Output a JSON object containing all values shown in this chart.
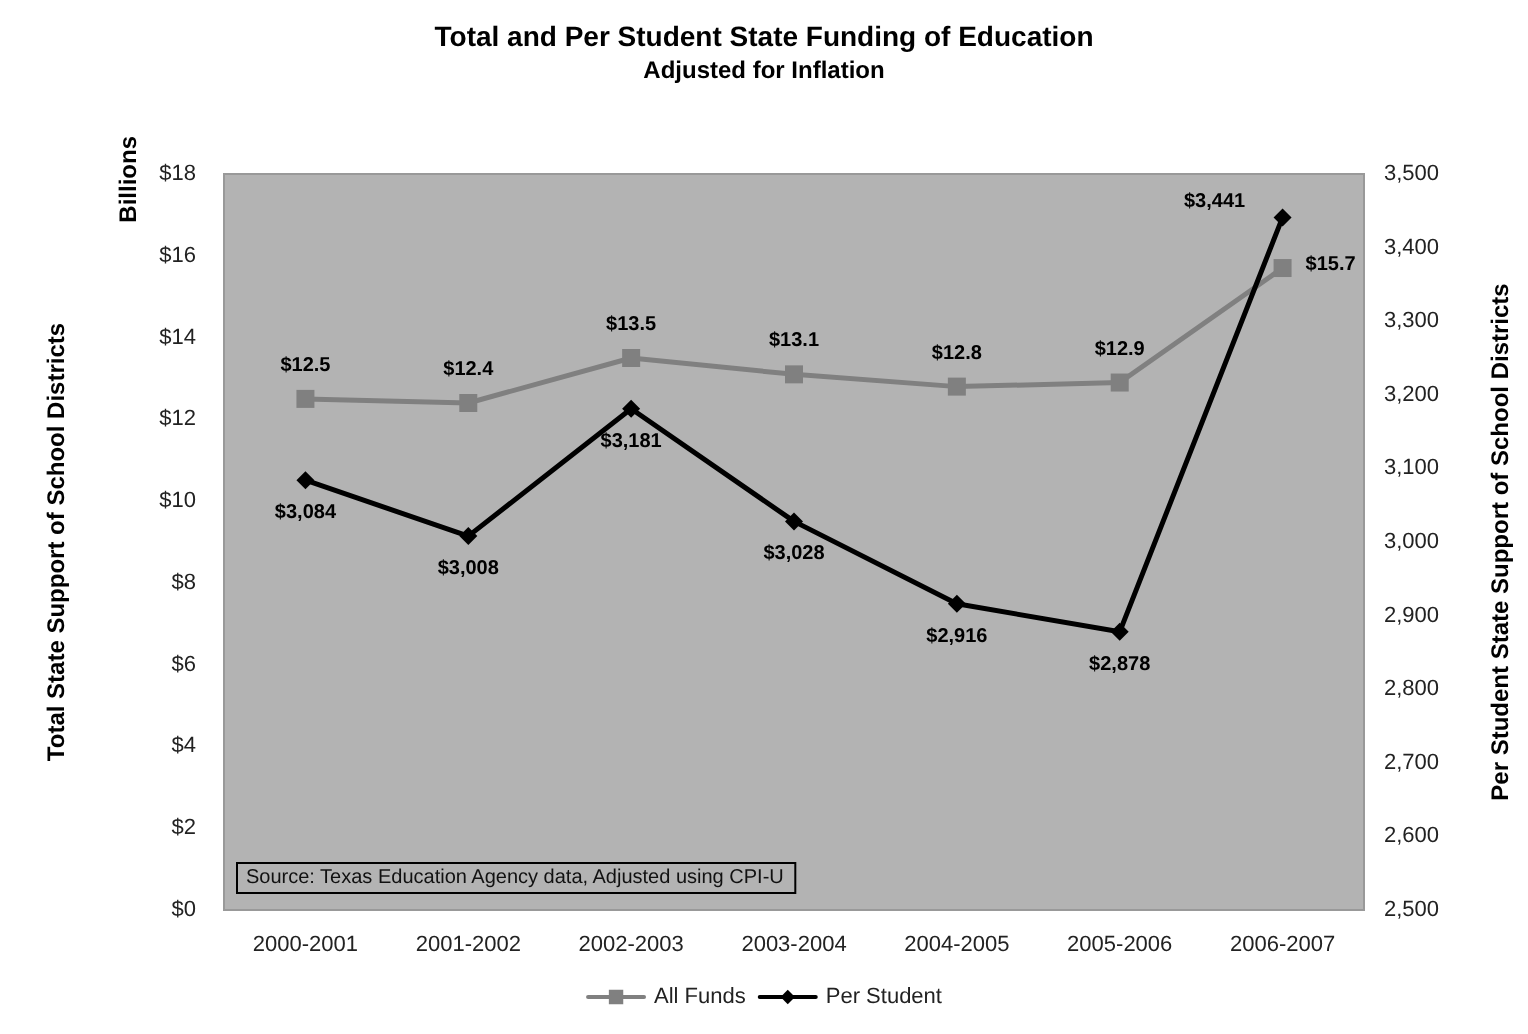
{
  "chart_data": {
    "type": "line",
    "title": "Total and Per Student State Funding of Education",
    "subtitle": "Adjusted for Inflation",
    "ylabel": "Total State Support of School Districts",
    "y2label": "Per Student State Support of School Districts",
    "annotations": [
      "Source: Texas Education Agency data, Adjusted using CPI-U",
      "Billions"
    ],
    "categories": [
      "2000-2001",
      "2001-2002",
      "2002-2003",
      "2003-2004",
      "2004-2005",
      "2005-2006",
      "2006-2007"
    ],
    "series": [
      {
        "name": "All Funds",
        "color": "#808080",
        "marker": "square",
        "values": [
          12.5,
          12.4,
          13.5,
          13.1,
          12.8,
          12.9,
          15.7
        ],
        "value_labels": [
          "$12.5",
          "$12.4",
          "$13.5",
          "$13.1",
          "$12.8",
          "$12.9",
          "$15.7"
        ]
      },
      {
        "name": "Per Student",
        "color": "#000000",
        "marker": "diamond",
        "axis": "y2",
        "values": [
          3084,
          3008,
          3181,
          3028,
          2916,
          2878,
          3441
        ],
        "value_labels": [
          "$3,084",
          "$3,008",
          "$3,181",
          "$3,028",
          "$2,916",
          "$2,878",
          "$3,441"
        ]
      }
    ],
    "ylim": [
      0,
      18
    ],
    "yticks": [
      {
        "value": 0,
        "label": "$0"
      },
      {
        "value": 2,
        "label": "$2"
      },
      {
        "value": 4,
        "label": "$4"
      },
      {
        "value": 6,
        "label": "$6"
      },
      {
        "value": 8,
        "label": "$8"
      },
      {
        "value": 10,
        "label": "$10"
      },
      {
        "value": 12,
        "label": "$12"
      },
      {
        "value": 14,
        "label": "$14"
      },
      {
        "value": 16,
        "label": "$16"
      },
      {
        "value": 18,
        "label": "$18"
      }
    ],
    "y2lim": [
      2500,
      3500
    ],
    "y2ticks": [
      {
        "value": 2500,
        "label": "2,500"
      },
      {
        "value": 2600,
        "label": "2,600"
      },
      {
        "value": 2700,
        "label": "2,700"
      },
      {
        "value": 2800,
        "label": "2,800"
      },
      {
        "value": 2900,
        "label": "2,900"
      },
      {
        "value": 3000,
        "label": "3,000"
      },
      {
        "value": 3100,
        "label": "3,100"
      },
      {
        "value": 3200,
        "label": "3,200"
      },
      {
        "value": 3300,
        "label": "3,300"
      },
      {
        "value": 3400,
        "label": "3,400"
      },
      {
        "value": 3500,
        "label": "3,500"
      }
    ],
    "grid": false,
    "legend": "bottom",
    "line_style": "solid"
  }
}
